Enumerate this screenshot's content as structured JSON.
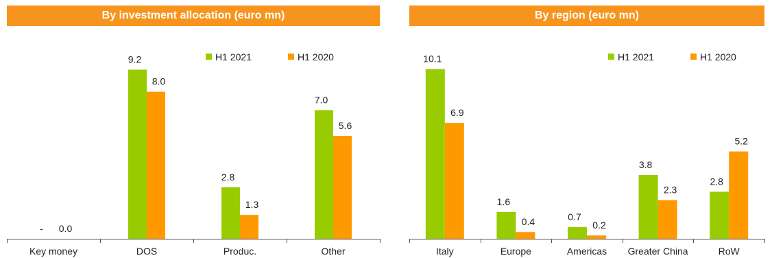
{
  "colors": {
    "banner": "#F7941D",
    "h1_2021": "#99CC00",
    "h1_2020": "#FF9900",
    "axis": "#555555"
  },
  "chart_data": [
    {
      "type": "bar",
      "title": "By investment allocation (euro mn)",
      "categories": [
        "Key money",
        "DOS",
        "Produc.",
        "Other"
      ],
      "series": [
        {
          "name": "H1 2021",
          "values": [
            0,
            9.2,
            2.8,
            7.0
          ],
          "labels": [
            "-",
            "9.2",
            "2.8",
            "7.0"
          ]
        },
        {
          "name": "H1 2020",
          "values": [
            0.0,
            8.0,
            1.3,
            5.6
          ],
          "labels": [
            "0.0",
            "8.0",
            "1.3",
            "5.6"
          ]
        }
      ],
      "ylim": [
        0,
        10.6
      ],
      "legend": "top-right"
    },
    {
      "type": "bar",
      "title": "By region (euro mn)",
      "categories": [
        "Italy",
        "Europe",
        "Americas",
        "Greater China",
        "RoW"
      ],
      "series": [
        {
          "name": "H1 2021",
          "values": [
            10.1,
            1.6,
            0.7,
            3.8,
            2.8
          ],
          "labels": [
            "10.1",
            "1.6",
            "0.7",
            "3.8",
            "2.8"
          ]
        },
        {
          "name": "H1 2020",
          "values": [
            6.9,
            0.4,
            0.2,
            2.3,
            5.2
          ],
          "labels": [
            "6.9",
            "0.4",
            "0.2",
            "2.3",
            "5.2"
          ]
        }
      ],
      "ylim": [
        0,
        11.6
      ],
      "legend": "top-right"
    }
  ]
}
